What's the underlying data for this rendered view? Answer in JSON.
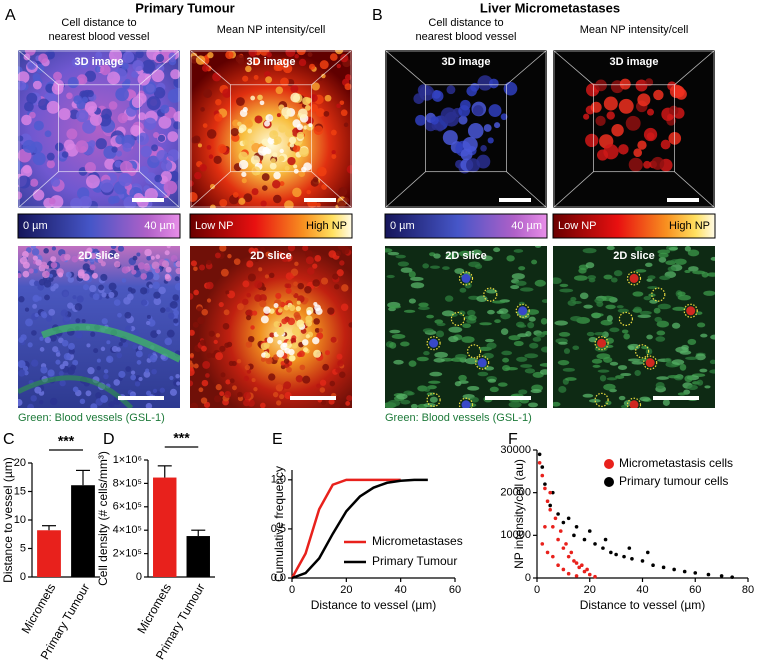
{
  "image_panels": [
    {
      "label": "A",
      "title": "Primary Tumour",
      "caption": "Green: Blood vessels (GSL-1)",
      "columns": [
        {
          "heading": [
            "Cell distance to",
            "nearest blood vessel"
          ],
          "top_label": "3D image",
          "bottom_label": "2D slice",
          "scale_low": "0 µm",
          "scale_high": "40 µm"
        },
        {
          "heading": [
            "Mean NP intensity/cell"
          ],
          "top_label": "3D image",
          "bottom_label": "2D slice",
          "scale_low": "Low NP",
          "scale_high": "High NP"
        }
      ]
    },
    {
      "label": "B",
      "title": "Liver Micrometastases",
      "caption": "Green: Blood vessels (GSL-1)",
      "columns": [
        {
          "heading": [
            "Cell distance to",
            "nearest blood vessel"
          ],
          "top_label": "3D image",
          "bottom_label": "2D slice",
          "scale_low": "0 µm",
          "scale_high": "40 µm"
        },
        {
          "heading": [
            "Mean NP intensity/cell"
          ],
          "top_label": "3D image",
          "bottom_label": "2D slice",
          "scale_low": "Low NP",
          "scale_high": "High NP"
        }
      ]
    }
  ],
  "chart_data": [
    {
      "label": "C",
      "type": "bar",
      "y_label": "Distance to vessel (µm)",
      "categories": [
        "Micromets",
        "Primary Tumour"
      ],
      "values": [
        8.2,
        16.1
      ],
      "errors": [
        0.8,
        2.6
      ],
      "colors": [
        "#e8211c",
        "#000000"
      ],
      "significance": "***",
      "ylim": [
        0,
        20
      ],
      "yticks": [
        0,
        5,
        10,
        15,
        20
      ]
    },
    {
      "label": "D",
      "type": "bar",
      "y_label": "Cell density (# cells/mm³)",
      "categories": [
        "Micromets",
        "Primary Tumour"
      ],
      "values": [
        850000,
        350000
      ],
      "errors": [
        100000,
        50000
      ],
      "colors": [
        "#e8211c",
        "#000000"
      ],
      "significance": "***",
      "ylim": [
        0,
        1000000
      ],
      "yticks": [
        0,
        {
          "value": 200000,
          "label": "2×10⁵"
        },
        {
          "value": 400000,
          "label": "4×10⁵"
        },
        {
          "value": 600000,
          "label": "6×10⁵"
        },
        {
          "value": 800000,
          "label": "8×10⁵"
        },
        {
          "value": 1000000,
          "label": "1×10⁶"
        }
      ]
    },
    {
      "label": "E",
      "type": "line",
      "x_label": "Distance to vessel (µm)",
      "y_label": "Cumulative frequency",
      "x": [
        0,
        5,
        10,
        15,
        20,
        25,
        30,
        35,
        40,
        45,
        50
      ],
      "series": [
        {
          "name": "Micrometastases",
          "color": "#e8211c",
          "values": [
            0,
            0.25,
            0.7,
            0.95,
            1,
            1,
            1,
            1,
            1,
            null,
            null
          ]
        },
        {
          "name": "Primary Tumour",
          "color": "#000000",
          "values": [
            0,
            0.05,
            0.2,
            0.45,
            0.68,
            0.83,
            0.92,
            0.97,
            0.99,
            1,
            1
          ]
        }
      ],
      "xlim": [
        0,
        60
      ],
      "xticks": [
        0,
        20,
        40,
        60
      ],
      "ylim": [
        0,
        1.1
      ],
      "yticks": [
        {
          "value": 0,
          "label": "0.0"
        },
        {
          "value": 0.5,
          "label": "0.5"
        },
        {
          "value": 1,
          "label": "1.0"
        }
      ]
    },
    {
      "label": "F",
      "type": "scatter",
      "x_label": "Distance to vessel (µm)",
      "y_label": "NP intensity/cell (au)",
      "series": [
        {
          "name": "Micrometastasis cells",
          "color": "#e8211c",
          "x": [
            1,
            2,
            3,
            4,
            5,
            6,
            7,
            8,
            9,
            10,
            11,
            12,
            13,
            14,
            15,
            16,
            17,
            18,
            19,
            20,
            2,
            4,
            6,
            8,
            10,
            3,
            5,
            12,
            15,
            22
          ],
          "values": [
            27000,
            24000,
            21000,
            18000,
            16000,
            12000,
            14000,
            9000,
            11000,
            7000,
            8000,
            5000,
            6000,
            4000,
            3500,
            2500,
            3000,
            1500,
            2000,
            800,
            8000,
            6000,
            5000,
            3000,
            2000,
            12000,
            20000,
            1000,
            500,
            300
          ]
        },
        {
          "name": "Primary tumour cells",
          "color": "#000000",
          "x": [
            1,
            3,
            5,
            8,
            10,
            14,
            18,
            22,
            25,
            28,
            30,
            33,
            36,
            40,
            44,
            48,
            52,
            56,
            60,
            65,
            70,
            74,
            15,
            20,
            26,
            35,
            42,
            2,
            6,
            12
          ],
          "values": [
            29000,
            22000,
            17000,
            15000,
            13000,
            10000,
            9000,
            8000,
            7000,
            6000,
            5500,
            5000,
            4500,
            4000,
            3000,
            2500,
            2000,
            1500,
            1200,
            800,
            500,
            200,
            12000,
            11000,
            9000,
            7000,
            6000,
            26000,
            20000,
            14000
          ]
        }
      ],
      "xlim": [
        0,
        80
      ],
      "xticks": [
        0,
        20,
        40,
        60,
        80
      ],
      "ylim": [
        0,
        30000
      ],
      "yticks": [
        0,
        10000,
        20000,
        30000
      ]
    }
  ]
}
